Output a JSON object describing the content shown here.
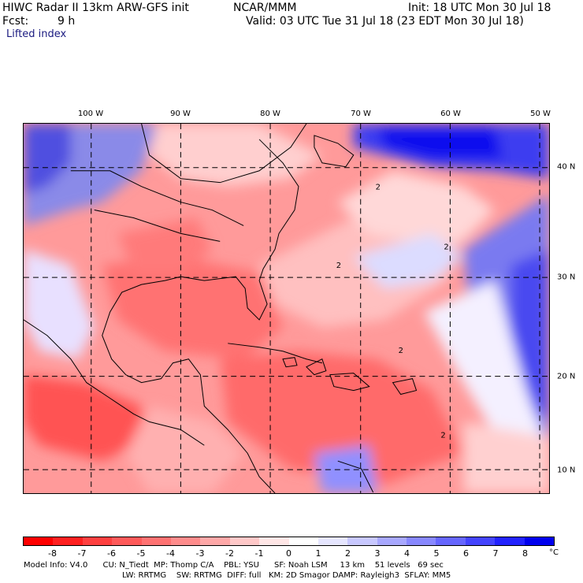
{
  "header": {
    "title": "HIWC Radar II 13km ARW-GFS init",
    "center": "NCAR/MMM",
    "init": "Init: 18 UTC Mon 30 Jul 18",
    "fcst_label": "Fcst:",
    "fcst_value": "9 h",
    "valid": "Valid: 03 UTC Tue 31 Jul 18 (23 EDT Mon 30 Jul 18)",
    "field": "Lifted index"
  },
  "map": {
    "lon_labels": [
      "100 W",
      "90 W",
      "80 W",
      "70 W",
      "60 W",
      "50 W"
    ],
    "lat_labels": [
      "40 N",
      "30 N",
      "20 N",
      "10 N"
    ],
    "contour_labels": [
      "2",
      "2",
      "2",
      "2",
      "2"
    ]
  },
  "colorbar": {
    "labels": [
      "-8",
      "-7",
      "-6",
      "-5",
      "-4",
      "-3",
      "-2",
      "-1",
      "0",
      "1",
      "2",
      "3",
      "4",
      "5",
      "6",
      "7",
      "8"
    ],
    "unit": "°C",
    "colors": [
      "#ff0000",
      "#ff2020",
      "#ff4040",
      "#ff5a5a",
      "#ff7272",
      "#ff8c8c",
      "#ffa8a8",
      "#ffc8c8",
      "#ffe6e6",
      "#ffffff",
      "#e6e6ff",
      "#c8c8ff",
      "#a8a8ff",
      "#8888ff",
      "#6666ff",
      "#4444ff",
      "#2222ff",
      "#0000ee"
    ]
  },
  "footer": {
    "line1": "Model Info: V4.0      CU: N_Tiedt  MP: Thomp C/A    PBL: YSU      SF: Noah LSM     13 km    51 levels   69 sec",
    "line2": "LW: RRTMG    SW: RRTMG  DIFF: full   KM: 2D Smagor DAMP: Rayleigh3  SFLAY: MM5"
  }
}
